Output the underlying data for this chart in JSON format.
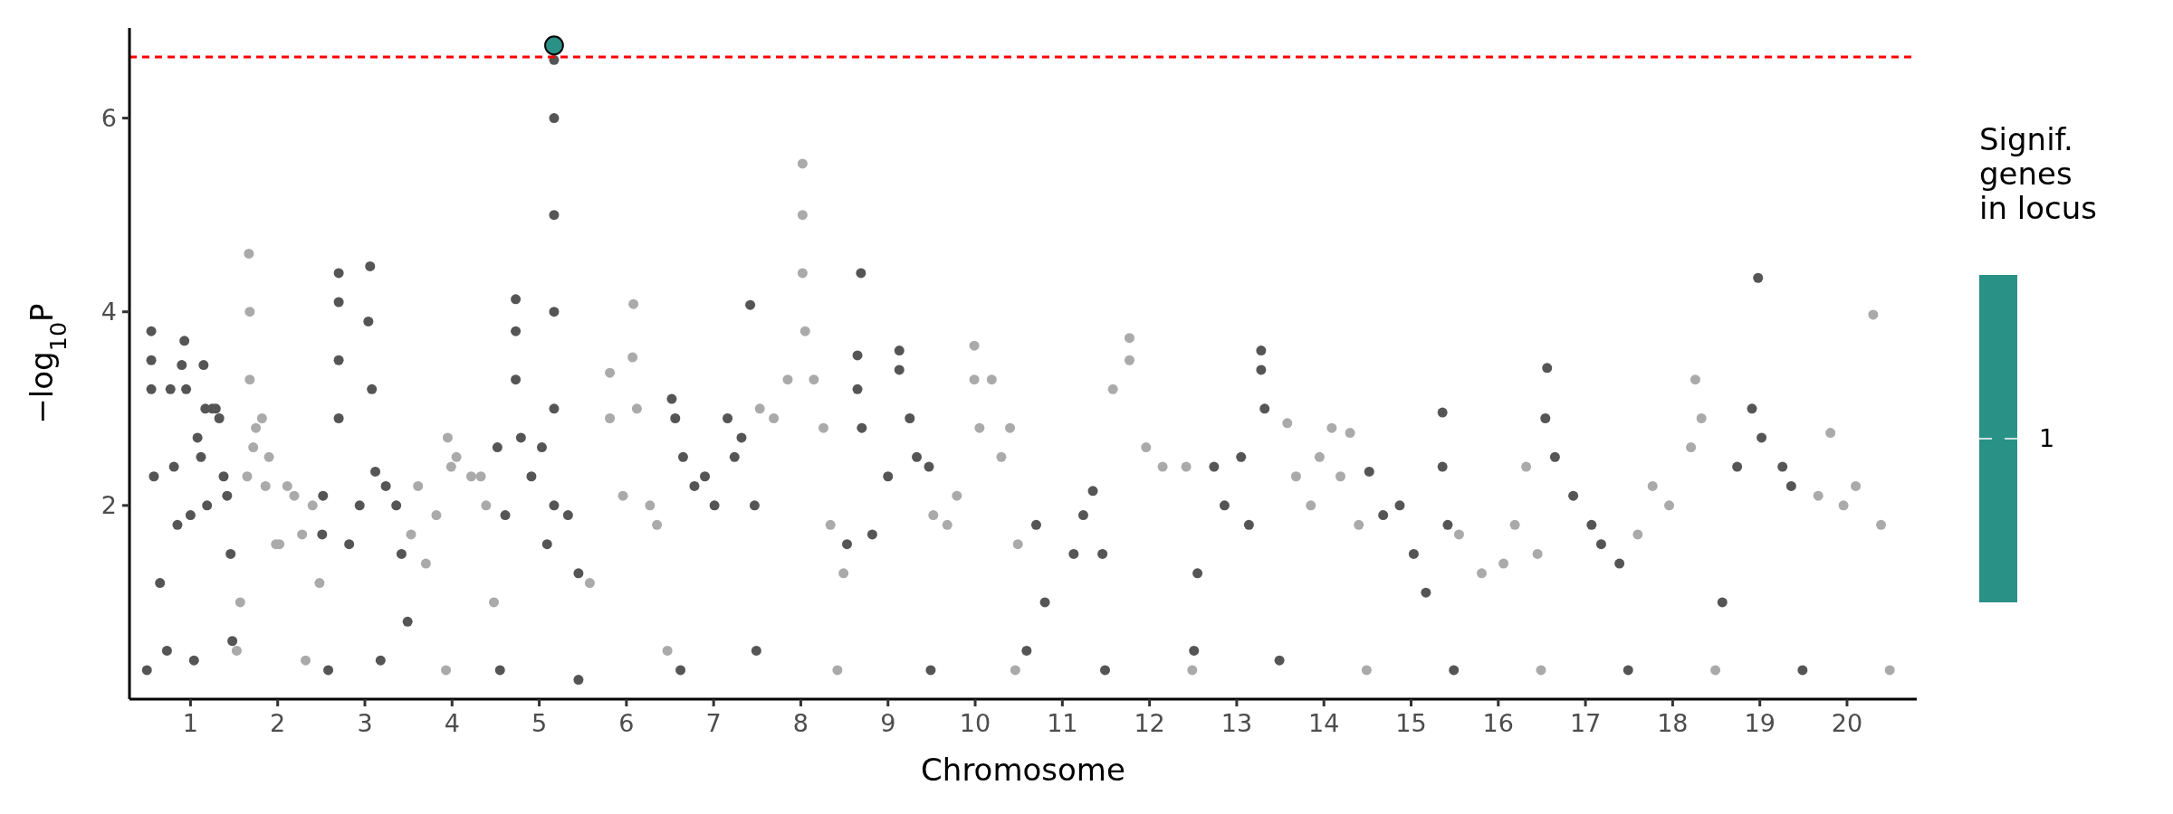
{
  "chart_data": {
    "type": "scatter",
    "xlabel": "Chromosome",
    "ylabel": "−log$_{10}$P",
    "clabel": "Signif. genes in locus",
    "xlim": [
      0.3,
      20.8
    ],
    "xticks": [
      1,
      2,
      3,
      4,
      5,
      6,
      7,
      8,
      9,
      10,
      11,
      12,
      13,
      14,
      15,
      16,
      17,
      18,
      19,
      20
    ],
    "ylim": [
      0,
      6.93
    ],
    "yticks": [
      2,
      4,
      6
    ],
    "grid": false,
    "marker": "circle",
    "annotations": [
      "1"
    ],
    "ref_lines": [
      {
        "axis": "y",
        "value": 6.63,
        "color": "#ff0000",
        "line_style": "dashed"
      }
    ],
    "series": [
      {
        "color": "#555555",
        "x": [
          0.55,
          0.55,
          0.55,
          0.58,
          0.65,
          0.77,
          0.81,
          0.85,
          0.9,
          0.93,
          0.95,
          1.0,
          1.08,
          1.12,
          1.15,
          1.17,
          1.19,
          1.25,
          1.29,
          1.33,
          1.38,
          1.42,
          1.46,
          0.5,
          0.73,
          1.04,
          1.48,
          2.51,
          2.52,
          2.7,
          2.7,
          2.7,
          2.7,
          2.82,
          2.94,
          3.04,
          3.06,
          3.08,
          3.12,
          3.24,
          3.36,
          3.42,
          3.49,
          2.58,
          3.18,
          4.52,
          4.61,
          4.73,
          4.73,
          4.73,
          4.79,
          4.91,
          5.03,
          5.09,
          5.17,
          5.17,
          5.17,
          5.17,
          5.17,
          5.17,
          5.33,
          5.45,
          4.55,
          5.45,
          6.52,
          6.56,
          6.65,
          6.78,
          6.9,
          7.01,
          7.16,
          7.24,
          7.32,
          7.42,
          7.47,
          7.49,
          6.62,
          8.53,
          8.65,
          8.65,
          8.69,
          8.7,
          8.82,
          9.0,
          9.13,
          9.13,
          9.25,
          9.33,
          9.47,
          9.49,
          10.59,
          10.7,
          10.8,
          11.13,
          11.24,
          11.35,
          11.46,
          11.49,
          12.51,
          12.55,
          12.74,
          12.86,
          13.05,
          13.14,
          13.28,
          13.28,
          13.32,
          13.49,
          14.52,
          14.68,
          14.87,
          15.03,
          15.17,
          15.36,
          15.36,
          15.42,
          15.49,
          16.54,
          16.56,
          16.65,
          16.86,
          17.07,
          17.18,
          17.39,
          17.49,
          18.57,
          18.74,
          18.91,
          18.98,
          19.02,
          19.26,
          19.36,
          19.49
        ],
        "values": [
          3.8,
          3.5,
          3.2,
          2.3,
          1.2,
          3.2,
          2.4,
          1.8,
          3.45,
          3.7,
          3.2,
          1.9,
          2.7,
          2.5,
          3.45,
          3.0,
          2.0,
          3.0,
          3.0,
          2.9,
          2.3,
          2.1,
          1.5,
          0.3,
          0.5,
          0.4,
          0.6,
          1.7,
          2.1,
          4.4,
          4.1,
          3.5,
          2.9,
          1.6,
          2.0,
          3.9,
          4.47,
          3.2,
          2.35,
          2.2,
          2.0,
          1.5,
          0.8,
          0.3,
          0.4,
          2.6,
          1.9,
          4.13,
          3.8,
          3.3,
          2.7,
          2.3,
          2.6,
          1.6,
          6.6,
          6.0,
          5.0,
          4.0,
          3.0,
          2.0,
          1.9,
          1.3,
          0.3,
          0.2,
          3.1,
          2.9,
          2.5,
          2.2,
          2.3,
          2.0,
          2.9,
          2.5,
          2.7,
          4.07,
          2.0,
          0.5,
          0.3,
          1.6,
          3.55,
          3.2,
          4.4,
          2.8,
          1.7,
          2.3,
          3.6,
          3.4,
          2.9,
          2.5,
          2.4,
          0.3,
          0.5,
          1.8,
          1.0,
          1.5,
          1.9,
          2.15,
          1.5,
          0.3,
          0.5,
          1.3,
          2.4,
          2.0,
          2.5,
          1.8,
          3.6,
          3.4,
          3.0,
          0.4,
          2.35,
          1.9,
          2.0,
          1.5,
          1.1,
          2.96,
          2.4,
          1.8,
          0.3,
          2.9,
          3.42,
          2.5,
          2.1,
          1.8,
          1.6,
          1.4,
          0.3,
          1.0,
          2.4,
          3.0,
          4.35,
          2.7,
          2.4,
          2.2,
          0.3
        ]
      },
      {
        "color": "#aaaaaa",
        "x": [
          1.53,
          1.57,
          1.65,
          1.67,
          1.68,
          1.68,
          1.72,
          1.75,
          1.82,
          1.86,
          1.9,
          1.98,
          2.02,
          2.11,
          2.19,
          2.28,
          2.4,
          2.48,
          2.32,
          3.53,
          3.61,
          3.7,
          3.82,
          3.95,
          3.99,
          4.05,
          4.22,
          4.33,
          4.39,
          4.48,
          3.93,
          5.58,
          5.81,
          5.81,
          5.96,
          6.07,
          6.08,
          6.12,
          6.27,
          6.35,
          6.47,
          7.53,
          7.69,
          7.85,
          8.02,
          8.02,
          8.02,
          8.05,
          8.15,
          8.26,
          8.34,
          8.49,
          8.42,
          9.52,
          9.68,
          9.79,
          9.99,
          9.99,
          10.05,
          10.19,
          10.3,
          10.4,
          10.49,
          10.46,
          11.58,
          11.77,
          11.77,
          11.96,
          12.15,
          12.42,
          12.49,
          13.58,
          13.68,
          13.85,
          13.95,
          14.09,
          14.19,
          14.3,
          14.4,
          14.49,
          15.55,
          15.81,
          16.06,
          16.19,
          16.32,
          16.45,
          16.49,
          17.6,
          17.77,
          17.96,
          18.21,
          18.26,
          18.33,
          18.49,
          19.67,
          19.81,
          19.96,
          20.1,
          20.3,
          20.39,
          20.49
        ],
        "values": [
          0.5,
          1.0,
          2.3,
          4.6,
          4.0,
          3.3,
          2.6,
          2.8,
          2.9,
          2.2,
          2.5,
          1.6,
          1.6,
          2.2,
          2.1,
          1.7,
          2.0,
          1.2,
          0.4,
          1.7,
          2.2,
          1.4,
          1.9,
          2.7,
          2.4,
          2.5,
          2.3,
          2.3,
          2.0,
          1.0,
          0.3,
          1.2,
          3.37,
          2.9,
          2.1,
          3.53,
          4.08,
          3.0,
          2.0,
          1.8,
          0.5,
          3.0,
          2.9,
          3.3,
          5.53,
          5.0,
          4.4,
          3.8,
          3.3,
          2.8,
          1.8,
          1.3,
          0.3,
          1.9,
          1.8,
          2.1,
          3.65,
          3.3,
          2.8,
          3.3,
          2.5,
          2.8,
          1.6,
          0.3,
          3.2,
          3.73,
          3.5,
          2.6,
          2.4,
          2.4,
          0.3,
          2.85,
          2.3,
          2.0,
          2.5,
          2.8,
          2.3,
          2.75,
          1.8,
          0.3,
          1.7,
          1.3,
          1.4,
          1.8,
          2.4,
          1.5,
          0.3,
          1.7,
          2.2,
          2.0,
          2.6,
          3.3,
          2.9,
          0.3,
          2.1,
          2.75,
          2.0,
          2.2,
          3.97,
          1.8,
          0.3
        ]
      },
      {
        "color": "#2a9187",
        "x": [
          5.17
        ],
        "values": [
          6.75
        ]
      }
    ]
  }
}
